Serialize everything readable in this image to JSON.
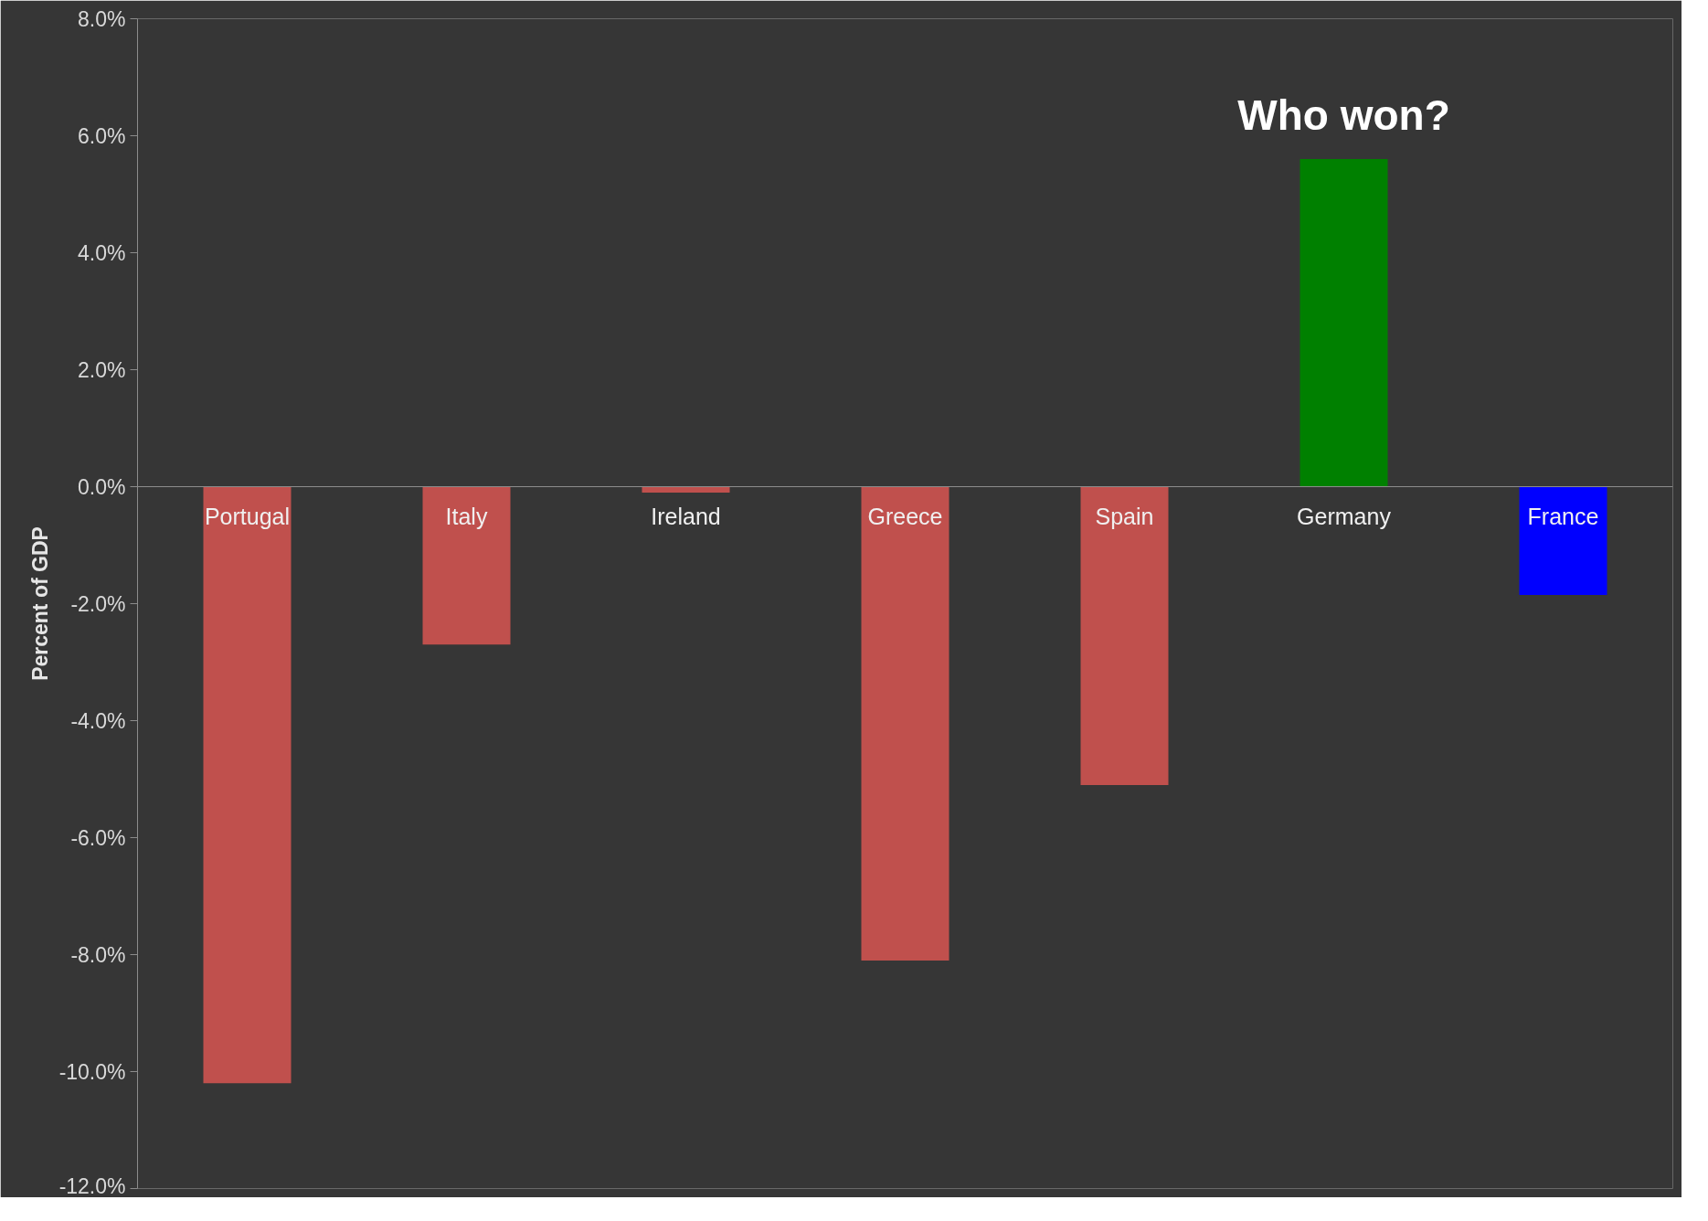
{
  "chart_data": {
    "type": "bar",
    "ylabel": "Percent of GDP",
    "categories": [
      "Portugal",
      "Italy",
      "Ireland",
      "Greece",
      "Spain",
      "Germany",
      "France"
    ],
    "values": [
      -10.2,
      -2.7,
      -0.1,
      -8.1,
      -5.1,
      5.6,
      -1.85
    ],
    "colors": [
      "#c0504d",
      "#c0504d",
      "#c0504d",
      "#c0504d",
      "#c0504d",
      "#008000",
      "#0000ff"
    ],
    "ylim": [
      -12,
      8
    ],
    "yticks": [
      {
        "value": -12,
        "label": "-12.0%"
      },
      {
        "value": -10,
        "label": "-10.0%"
      },
      {
        "value": -8,
        "label": "-8.0%"
      },
      {
        "value": -6,
        "label": "-6.0%"
      },
      {
        "value": -4,
        "label": "-4.0%"
      },
      {
        "value": -2,
        "label": "-2.0%"
      },
      {
        "value": 0,
        "label": "0.0%"
      },
      {
        "value": 2,
        "label": "2.0%"
      },
      {
        "value": 4,
        "label": "4.0%"
      },
      {
        "value": 6,
        "label": "6.0%"
      },
      {
        "value": 8,
        "label": "8.0%"
      }
    ],
    "annotations": [
      "Who won?"
    ],
    "grid": false
  }
}
